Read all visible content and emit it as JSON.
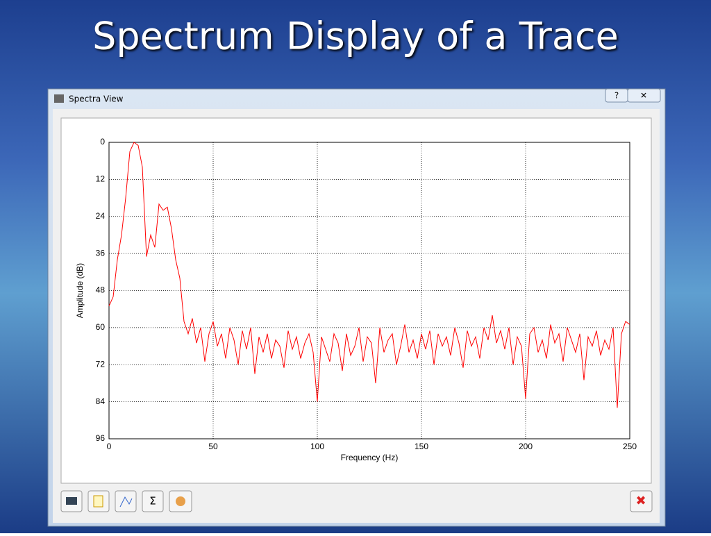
{
  "slide_title": "Spectrum Display of a Trace",
  "window": {
    "title": "Spectra View",
    "sum_button": "Σ"
  },
  "chart_data": {
    "type": "line",
    "xlabel": "Frequency (Hz)",
    "ylabel": "Amplitude (dB)",
    "color": "#ff0000",
    "grid": true,
    "xlim": [
      0,
      250
    ],
    "xticks": [
      0,
      50,
      100,
      150,
      200,
      250
    ],
    "ylim": [
      96,
      0
    ],
    "yticks": [
      0,
      12,
      24,
      36,
      48,
      60,
      72,
      84,
      96
    ],
    "x": [
      0,
      2,
      4,
      6,
      8,
      10,
      12,
      14,
      16,
      18,
      20,
      22,
      24,
      26,
      28,
      30,
      32,
      34,
      36,
      38,
      40,
      42,
      44,
      46,
      48,
      50,
      52,
      54,
      56,
      58,
      60,
      62,
      64,
      66,
      68,
      70,
      72,
      74,
      76,
      78,
      80,
      82,
      84,
      86,
      88,
      90,
      92,
      94,
      96,
      98,
      100,
      102,
      104,
      106,
      108,
      110,
      112,
      114,
      116,
      118,
      120,
      122,
      124,
      126,
      128,
      130,
      132,
      134,
      136,
      138,
      140,
      142,
      144,
      146,
      148,
      150,
      152,
      154,
      156,
      158,
      160,
      162,
      164,
      166,
      168,
      170,
      172,
      174,
      176,
      178,
      180,
      182,
      184,
      186,
      188,
      190,
      192,
      194,
      196,
      198,
      200,
      202,
      204,
      206,
      208,
      210,
      212,
      214,
      216,
      218,
      220,
      222,
      224,
      226,
      228,
      230,
      232,
      234,
      236,
      238,
      240,
      242,
      244,
      246,
      248,
      250
    ],
    "values": [
      53,
      50,
      38,
      30,
      18,
      3,
      0,
      1,
      8,
      37,
      30,
      34,
      20,
      22,
      21,
      28,
      38,
      44,
      58,
      62,
      57,
      65,
      60,
      71,
      62,
      58,
      66,
      62,
      70,
      60,
      64,
      72,
      61,
      67,
      60,
      75,
      63,
      68,
      62,
      70,
      64,
      66,
      73,
      61,
      67,
      63,
      70,
      65,
      62,
      68,
      84,
      63,
      67,
      71,
      62,
      65,
      74,
      62,
      69,
      66,
      60,
      71,
      63,
      65,
      78,
      60,
      68,
      64,
      62,
      72,
      66,
      59,
      68,
      64,
      70,
      62,
      67,
      61,
      72,
      62,
      66,
      63,
      69,
      60,
      65,
      73,
      61,
      66,
      63,
      70,
      60,
      64,
      56,
      65,
      61,
      67,
      60,
      72,
      63,
      66,
      83,
      62,
      60,
      68,
      64,
      70,
      59,
      65,
      62,
      71,
      60,
      64,
      68,
      62,
      77,
      63,
      66,
      61,
      69,
      64,
      67,
      60,
      86,
      62,
      58,
      59
    ]
  }
}
